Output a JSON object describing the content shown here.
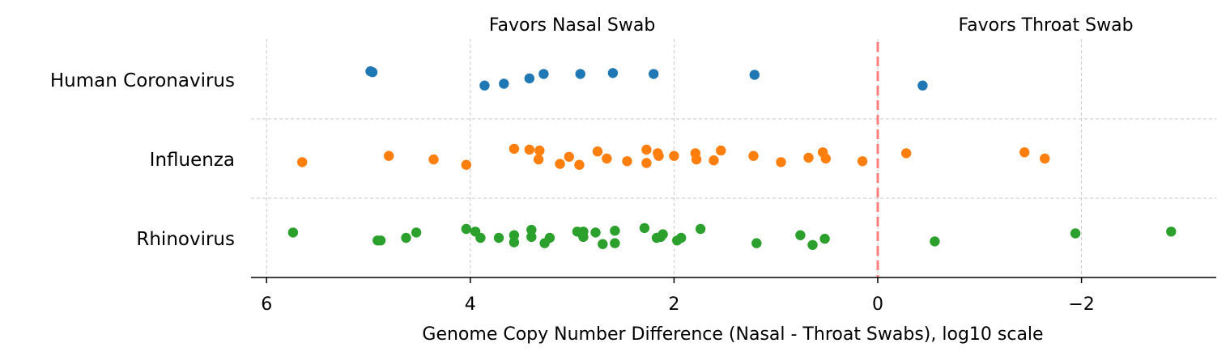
{
  "chart_data": {
    "type": "scatter",
    "xlabel": "Genome Copy Number Difference (Nasal - Throat Swabs), log10 scale",
    "xlim": [
      6.2,
      -3.3
    ],
    "x_ticks": [
      6,
      4,
      2,
      0,
      -2
    ],
    "x_tick_labels": [
      "6",
      "4",
      "2",
      "0",
      "−2"
    ],
    "categories": [
      "Human Coronavirus",
      "Influenza",
      "Rhinovirus"
    ],
    "reference_line": {
      "x": 0,
      "color": "#ff7f7f",
      "style": "dashed"
    },
    "annotations": [
      {
        "text": "Favors Nasal Swab",
        "x": 3.0
      },
      {
        "text": "Favors Throat Swab",
        "x": -1.65
      }
    ],
    "grid": true,
    "series": [
      {
        "category": "Human Coronavirus",
        "color": "#1f77b4",
        "x": [
          4.98,
          4.96,
          3.86,
          3.67,
          3.42,
          3.28,
          2.92,
          2.6,
          2.2,
          1.21,
          -0.44
        ],
        "jitter": [
          0.09,
          0.08,
          -0.07,
          -0.05,
          0.01,
          0.06,
          0.06,
          0.07,
          0.06,
          0.05,
          -0.07
        ]
      },
      {
        "category": "Influenza",
        "color": "#ff7f0e",
        "x": [
          5.65,
          4.8,
          4.36,
          4.04,
          3.57,
          3.42,
          3.32,
          3.33,
          3.12,
          3.03,
          2.93,
          2.75,
          2.66,
          2.46,
          2.27,
          2.27,
          2.16,
          2.15,
          2.0,
          1.79,
          1.78,
          1.61,
          1.54,
          1.22,
          0.95,
          0.68,
          0.54,
          0.51,
          0.15,
          -0.28,
          -1.44,
          -1.64
        ],
        "jitter": [
          -0.04,
          0.03,
          -0.01,
          -0.07,
          0.11,
          0.1,
          0.09,
          -0.01,
          -0.06,
          0.02,
          -0.07,
          0.08,
          -0.0,
          -0.03,
          0.1,
          -0.05,
          0.06,
          0.03,
          0.03,
          0.06,
          -0.01,
          -0.02,
          0.09,
          0.03,
          -0.04,
          0.01,
          0.07,
          0.0,
          -0.03,
          0.06,
          0.07,
          0.0
        ]
      },
      {
        "category": "Rhinovirus",
        "color": "#2ca02c",
        "x": [
          5.74,
          4.91,
          4.88,
          4.63,
          4.53,
          4.04,
          3.95,
          3.9,
          3.72,
          3.57,
          3.57,
          3.4,
          3.4,
          3.27,
          3.22,
          2.95,
          2.9,
          2.89,
          2.89,
          2.77,
          2.7,
          2.58,
          2.58,
          2.29,
          2.17,
          2.13,
          2.11,
          1.97,
          1.93,
          1.74,
          1.19,
          0.76,
          0.64,
          0.52,
          -0.56,
          -1.94,
          -2.88
        ],
        "jitter": [
          0.06,
          -0.03,
          -0.03,
          0.0,
          0.06,
          0.1,
          0.07,
          0.0,
          0.0,
          0.03,
          -0.05,
          0.09,
          0.01,
          -0.06,
          0.0,
          0.07,
          0.04,
          0.07,
          0.01,
          0.06,
          -0.07,
          0.08,
          -0.06,
          0.11,
          0.0,
          0.01,
          0.04,
          -0.03,
          0.0,
          0.1,
          -0.06,
          0.03,
          -0.08,
          -0.01,
          -0.04,
          0.05,
          0.07
        ]
      }
    ]
  }
}
